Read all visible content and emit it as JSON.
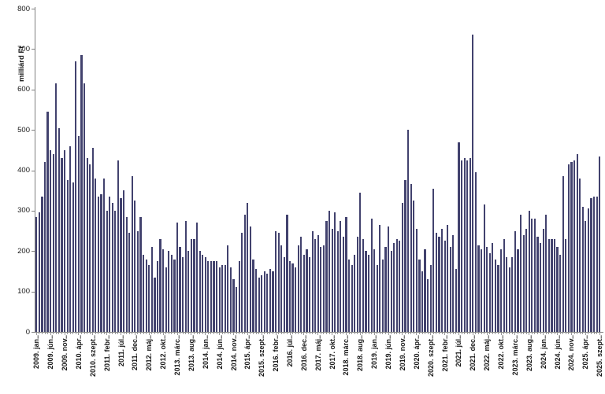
{
  "chart_data": {
    "type": "bar",
    "title": "",
    "ylabel": "milliárd Ft",
    "xlabel": "",
    "ylim": [
      0,
      800
    ],
    "yticks": [
      0,
      100,
      200,
      300,
      400,
      500,
      600,
      700,
      800
    ],
    "grid": false,
    "legend_position": "none",
    "bar_color": "#42426E",
    "axis_color": "#808080",
    "x_label_every_n_bars": 5,
    "x_tick_labels": [
      "2009. jan..",
      "2009. jún..",
      "2009. nov..",
      "2010. ápr..",
      "2010. szept..",
      "2011. febr..",
      "2011. júl..",
      "2011. dec..",
      "2012. máj..",
      "2012. okt..",
      "2013. márc..",
      "2013. aug..",
      "2014. jan..",
      "2014. jún..",
      "2014. nov..",
      "2015. ápr..",
      "2015. szept..",
      "2016. febr..",
      "2016. júl..",
      "2016. dec..",
      "2017. máj..",
      "2017. okt..",
      "2018. márc..",
      "2018. aug..",
      "2019. jan..",
      "2019. jún..",
      "2019. nov..",
      "2020. ápr..",
      "2020. szept..",
      "2021. febr..",
      "2021. júl..",
      "2021. dec..",
      "2022. máj..",
      "2022. okt..",
      "2023. márc..",
      "2023. aug..",
      "2024. jan..",
      "2024. jún..",
      "2024. nov..",
      "2025. ápr..",
      "2025. szept.."
    ],
    "x_range_note": "monthly bars from 2009. jan to 2025. szept",
    "values": [
      285,
      295,
      335,
      420,
      545,
      450,
      440,
      615,
      505,
      430,
      450,
      375,
      460,
      370,
      670,
      485,
      685,
      615,
      430,
      415,
      455,
      380,
      335,
      340,
      380,
      300,
      335,
      320,
      300,
      425,
      330,
      350,
      285,
      245,
      385,
      325,
      250,
      285,
      190,
      180,
      165,
      210,
      135,
      175,
      230,
      205,
      160,
      200,
      190,
      180,
      270,
      210,
      185,
      275,
      200,
      230,
      230,
      270,
      200,
      190,
      185,
      175,
      175,
      175,
      175,
      160,
      165,
      165,
      215,
      160,
      130,
      110,
      175,
      245,
      290,
      320,
      260,
      180,
      155,
      135,
      140,
      150,
      145,
      155,
      150,
      250,
      245,
      215,
      185,
      290,
      175,
      170,
      160,
      215,
      235,
      190,
      205,
      185,
      250,
      230,
      240,
      210,
      215,
      275,
      300,
      255,
      295,
      250,
      275,
      235,
      285,
      180,
      165,
      190,
      235,
      345,
      230,
      200,
      190,
      280,
      205,
      165,
      265,
      180,
      210,
      260,
      200,
      220,
      230,
      225,
      320,
      375,
      500,
      365,
      325,
      255,
      180,
      150,
      205,
      130,
      165,
      355,
      245,
      235,
      255,
      225,
      265,
      210,
      240,
      155,
      470,
      425,
      430,
      425,
      430,
      735,
      395,
      215,
      205,
      315,
      210,
      195,
      220,
      180,
      165,
      205,
      230,
      185,
      160,
      185,
      250,
      205,
      290,
      240,
      255,
      300,
      280,
      280,
      235,
      220,
      255,
      290,
      230,
      230,
      230,
      210,
      190,
      385,
      230,
      415,
      420,
      425,
      440,
      380,
      310,
      275,
      305,
      330,
      335,
      335,
      435
    ]
  }
}
